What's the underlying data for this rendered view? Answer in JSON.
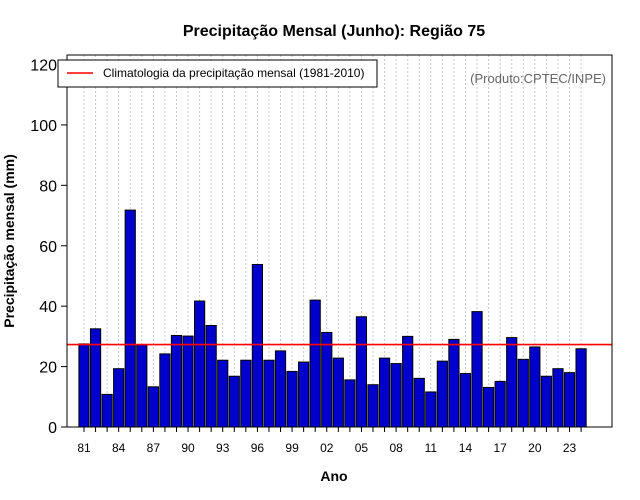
{
  "chart_data": {
    "type": "bar",
    "title": "Precipitação Mensal (Junho): Região 75",
    "xlabel": "Ano",
    "ylabel": "Precipitação mensal (mm)",
    "ylim": [
      0,
      122
    ],
    "yticks": [
      0,
      20,
      40,
      60,
      80,
      100,
      120
    ],
    "categories": [
      "1981",
      "1982",
      "1983",
      "1984",
      "1985",
      "1986",
      "1987",
      "1988",
      "1989",
      "1990",
      "1991",
      "1992",
      "1993",
      "1994",
      "1995",
      "1996",
      "1997",
      "1998",
      "1999",
      "2000",
      "2001",
      "2002",
      "2003",
      "2004",
      "2005",
      "2006",
      "2007",
      "2008",
      "2009",
      "2010",
      "2011",
      "2012",
      "2013",
      "2014",
      "2015",
      "2016",
      "2017",
      "2018",
      "2019",
      "2020",
      "2021",
      "2022",
      "2023",
      "2024"
    ],
    "xtick_labels": [
      {
        "index": 0,
        "label": "81"
      },
      {
        "index": 3,
        "label": "84"
      },
      {
        "index": 6,
        "label": "87"
      },
      {
        "index": 9,
        "label": "90"
      },
      {
        "index": 12,
        "label": "93"
      },
      {
        "index": 15,
        "label": "96"
      },
      {
        "index": 18,
        "label": "99"
      },
      {
        "index": 21,
        "label": "02"
      },
      {
        "index": 24,
        "label": "05"
      },
      {
        "index": 27,
        "label": "08"
      },
      {
        "index": 30,
        "label": "11"
      },
      {
        "index": 33,
        "label": "14"
      },
      {
        "index": 36,
        "label": "17"
      },
      {
        "index": 39,
        "label": "20"
      },
      {
        "index": 42,
        "label": "23"
      }
    ],
    "values": [
      27.5,
      32.5,
      10.8,
      19.3,
      71.8,
      27.2,
      13.3,
      24.2,
      30.3,
      30.1,
      41.7,
      33.6,
      22.1,
      16.8,
      22.1,
      53.8,
      22.1,
      25.2,
      18.4,
      21.5,
      42.0,
      31.3,
      22.8,
      15.6,
      36.5,
      14.0,
      22.8,
      21.0,
      30.0,
      16.1,
      11.6,
      21.8,
      29.0,
      17.7,
      38.2,
      13.1,
      15.1,
      29.6,
      22.4,
      26.5,
      16.8,
      19.3,
      18.0,
      25.9
    ],
    "bar_color": "#0000cc",
    "climatology": {
      "value": 27.3,
      "color": "#ff0000",
      "label": "Climatologia da precipitação mensal (1981-2010)"
    },
    "legend_position": "top-left",
    "grid": "vertical-dotted"
  },
  "credit": "(Produto:CPTEC/INPE)"
}
